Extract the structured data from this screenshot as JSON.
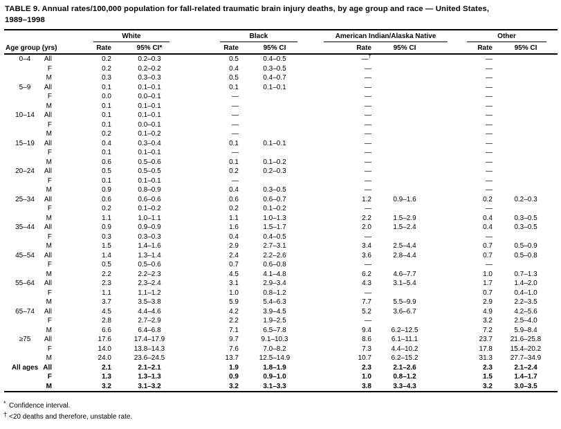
{
  "title": {
    "line1": "TABLE 9. Annual rates/100,000 population for fall-related traumatic brain injury deaths, by age group and race — United States,",
    "line2": "1989–1998"
  },
  "table": {
    "row_header": "Age group (yrs)",
    "groups": [
      {
        "label": "White",
        "rate_header": "Rate",
        "ci_header": "95% CI*"
      },
      {
        "label": "Black",
        "rate_header": "Rate",
        "ci_header": "95% CI"
      },
      {
        "label": "American Indian/Alaska Native",
        "rate_header": "Rate",
        "ci_header": "95% CI"
      },
      {
        "label": "Other",
        "rate_header": "Rate",
        "ci_header": "95% CI"
      }
    ],
    "rows": [
      {
        "age": "0–4",
        "sex": "All",
        "cells": [
          "0.2",
          "0.2–0.3",
          "0.5",
          "0.4–0.5",
          "—†",
          "",
          "—",
          ""
        ]
      },
      {
        "age": "",
        "sex": "F",
        "cells": [
          "0.2",
          "0.2–0.2",
          "0.4",
          "0.3–0.5",
          "—",
          "",
          "—",
          ""
        ]
      },
      {
        "age": "",
        "sex": "M",
        "cells": [
          "0.3",
          "0.3–0.3",
          "0.5",
          "0.4–0.7",
          "—",
          "",
          "—",
          ""
        ]
      },
      {
        "age": "5–9",
        "sex": "All",
        "cells": [
          "0.1",
          "0.1–0.1",
          "0.1",
          "0.1–0.1",
          "—",
          "",
          "—",
          ""
        ]
      },
      {
        "age": "",
        "sex": "F",
        "cells": [
          "0.0",
          "0.0–0.1",
          "—",
          "",
          "—",
          "",
          "—",
          ""
        ]
      },
      {
        "age": "",
        "sex": "M",
        "cells": [
          "0.1",
          "0.1–0.1",
          "—",
          "",
          "—",
          "",
          "—",
          ""
        ]
      },
      {
        "age": "10–14",
        "sex": "All",
        "cells": [
          "0.1",
          "0.1–0.1",
          "—",
          "",
          "—",
          "",
          "—",
          ""
        ]
      },
      {
        "age": "",
        "sex": "F",
        "cells": [
          "0.1",
          "0.0–0.1",
          "—",
          "",
          "—",
          "",
          "—",
          ""
        ]
      },
      {
        "age": "",
        "sex": "M",
        "cells": [
          "0.2",
          "0.1–0.2",
          "—",
          "",
          "—",
          "",
          "—",
          ""
        ]
      },
      {
        "age": "15–19",
        "sex": "All",
        "cells": [
          "0.4",
          "0.3–0.4",
          "0.1",
          "0.1–0.1",
          "—",
          "",
          "—",
          ""
        ]
      },
      {
        "age": "",
        "sex": "F",
        "cells": [
          "0.1",
          "0.1–0.1",
          "—",
          "",
          "—",
          "",
          "—",
          ""
        ]
      },
      {
        "age": "",
        "sex": "M",
        "cells": [
          "0.6",
          "0.5–0.6",
          "0.1",
          "0.1–0.2",
          "—",
          "",
          "—",
          ""
        ]
      },
      {
        "age": "20–24",
        "sex": "All",
        "cells": [
          "0.5",
          "0.5–0.5",
          "0.2",
          "0.2–0.3",
          "—",
          "",
          "—",
          ""
        ]
      },
      {
        "age": "",
        "sex": "F",
        "cells": [
          "0.1",
          "0.1–0.1",
          "—",
          "",
          "—",
          "",
          "—",
          ""
        ]
      },
      {
        "age": "",
        "sex": "M",
        "cells": [
          "0.9",
          "0.8–0.9",
          "0.4",
          "0.3–0.5",
          "—",
          "",
          "—",
          ""
        ]
      },
      {
        "age": "25–34",
        "sex": "All",
        "cells": [
          "0.6",
          "0.6–0.6",
          "0.6",
          "0.6–0.7",
          "1.2",
          "0.9–1.6",
          "0.2",
          "0.2–0.3"
        ]
      },
      {
        "age": "",
        "sex": "F",
        "cells": [
          "0.2",
          "0.1–0.2",
          "0.2",
          "0.1–0.2",
          "—",
          "",
          "—",
          ""
        ]
      },
      {
        "age": "",
        "sex": "M",
        "cells": [
          "1.1",
          "1.0–1.1",
          "1.1",
          "1.0–1.3",
          "2.2",
          "1.5–2.9",
          "0.4",
          "0.3–0.5"
        ]
      },
      {
        "age": "35–44",
        "sex": "All",
        "cells": [
          "0.9",
          "0.9–0.9",
          "1.6",
          "1.5–1.7",
          "2.0",
          "1.5–2.4",
          "0.4",
          "0.3–0.5"
        ]
      },
      {
        "age": "",
        "sex": "F",
        "cells": [
          "0.3",
          "0.3–0.3",
          "0.4",
          "0.4–0.5",
          "—",
          "",
          "—",
          ""
        ]
      },
      {
        "age": "",
        "sex": "M",
        "cells": [
          "1.5",
          "1.4–1.6",
          "2.9",
          "2.7–3.1",
          "3.4",
          "2.5–4.4",
          "0.7",
          "0.5–0.9"
        ]
      },
      {
        "age": "45–54",
        "sex": "All",
        "cells": [
          "1.4",
          "1.3–1.4",
          "2.4",
          "2.2–2.6",
          "3.6",
          "2.8–4.4",
          "0.7",
          "0.5–0.8"
        ]
      },
      {
        "age": "",
        "sex": "F",
        "cells": [
          "0.5",
          "0.5–0.6",
          "0.7",
          "0.6–0.8",
          "—",
          "",
          "—",
          ""
        ]
      },
      {
        "age": "",
        "sex": "M",
        "cells": [
          "2.2",
          "2.2–2.3",
          "4.5",
          "4.1–4.8",
          "6.2",
          "4.6–7.7",
          "1.0",
          "0.7–1.3"
        ]
      },
      {
        "age": "55–64",
        "sex": "All",
        "cells": [
          "2.3",
          "2.3–2.4",
          "3.1",
          "2.9–3.4",
          "4.3",
          "3.1–5.4",
          "1.7",
          "1.4–2.0"
        ]
      },
      {
        "age": "",
        "sex": "F",
        "cells": [
          "1.1",
          "1.1–1.2",
          "1.0",
          "0.8–1.2",
          "—",
          "",
          "0.7",
          "0.4–1.0"
        ]
      },
      {
        "age": "",
        "sex": "M",
        "cells": [
          "3.7",
          "3.5–3.8",
          "5.9",
          "5.4–6.3",
          "7.7",
          "5.5–9.9",
          "2.9",
          "2.2–3.5"
        ]
      },
      {
        "age": "65–74",
        "sex": "All",
        "cells": [
          "4.5",
          "4.4–4.6",
          "4.2",
          "3.9–4.5",
          "5.2",
          "3.6–6.7",
          "4.9",
          "4.2–5.6"
        ]
      },
      {
        "age": "",
        "sex": "F",
        "cells": [
          "2.8",
          "2.7–2.9",
          "2.2",
          "1.9–2.5",
          "—",
          "",
          "3.2",
          "2.5–4.0"
        ]
      },
      {
        "age": "",
        "sex": "M",
        "cells": [
          "6.6",
          "6.4–6.8",
          "7.1",
          "6.5–7.8",
          "9.4",
          "6.2–12.5",
          "7.2",
          "5.9–8.4"
        ]
      },
      {
        "age": "≥75",
        "sex": "All",
        "cells": [
          "17.6",
          "17.4–17.9",
          "9.7",
          "9.1–10.3",
          "8.6",
          "6.1–11.1",
          "23.7",
          "21.6–25.8"
        ]
      },
      {
        "age": "",
        "sex": "F",
        "cells": [
          "14.0",
          "13.8–14.3",
          "7.6",
          "7.0–8.2",
          "7.3",
          "4.4–10.2",
          "17.8",
          "15.4–20.2"
        ]
      },
      {
        "age": "",
        "sex": "M",
        "cells": [
          "24.0",
          "23.6–24.5",
          "13.7",
          "12.5–14.9",
          "10.7",
          "6.2–15.2",
          "31.3",
          "27.7–34.9"
        ]
      },
      {
        "age": "All ages",
        "sex": "All",
        "bold": true,
        "cells": [
          "2.1",
          "2.1–2.1",
          "1.9",
          "1.8–1.9",
          "2.3",
          "2.1–2.6",
          "2.3",
          "2.1–2.4"
        ]
      },
      {
        "age": "",
        "sex": "F",
        "bold": true,
        "cells": [
          "1.3",
          "1.3–1.3",
          "0.9",
          "0.9–1.0",
          "1.0",
          "0.8–1.2",
          "1.5",
          "1.4–1.7"
        ]
      },
      {
        "age": "",
        "sex": "M",
        "bold": true,
        "cells": [
          "3.2",
          "3.1–3.2",
          "3.2",
          "3.1–3.3",
          "3.8",
          "3.3–4.3",
          "3.2",
          "3.0–3.5"
        ]
      }
    ]
  },
  "footnotes": [
    {
      "marker": "*",
      "text": "Confidence interval."
    },
    {
      "marker": "†",
      "text": "<20 deaths and therefore, unstable rate."
    }
  ]
}
